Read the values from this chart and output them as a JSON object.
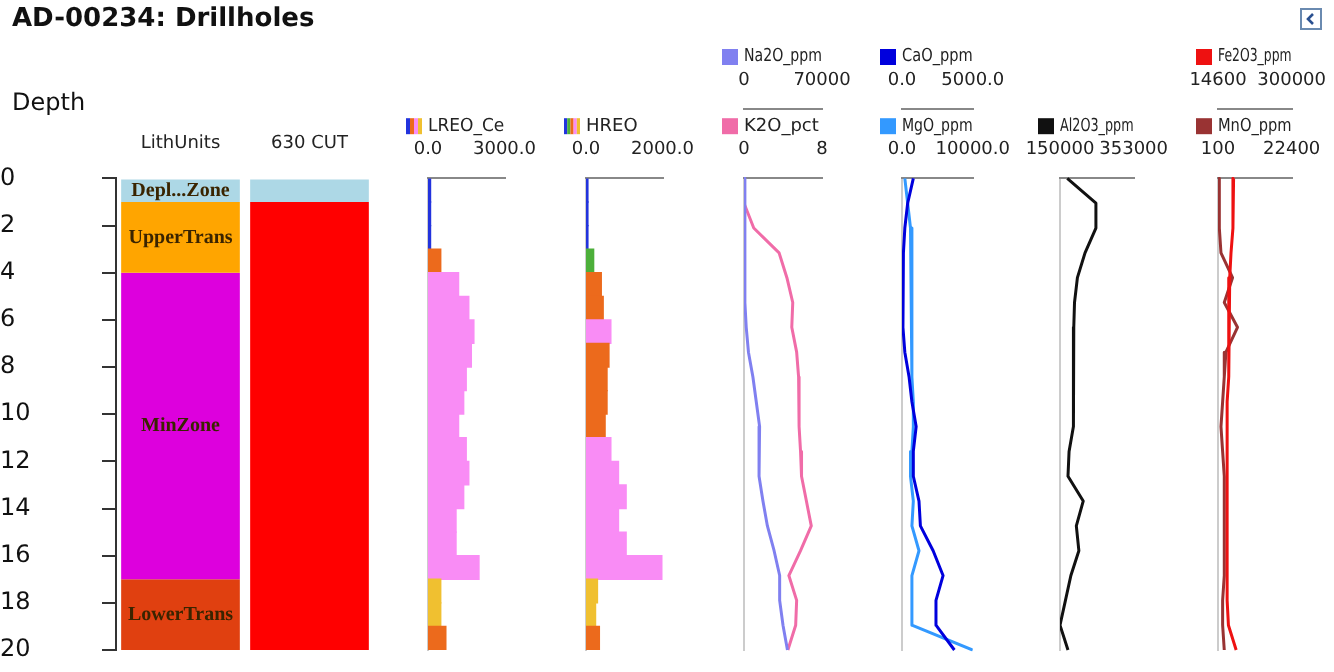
{
  "chart_data": [
    {
      "type": "bar",
      "stacked": true,
      "title": "AD-00234: Drillholes",
      "ylabel": "Depth",
      "categories": [
        "LithUnits",
        "630 CUT"
      ],
      "series": [
        {
          "name": "Depl...Zone",
          "color": "#add8e6",
          "values": [
            1,
            null
          ]
        },
        {
          "name": "UpperTrans",
          "color": "#ffa500",
          "values": [
            3,
            null
          ]
        },
        {
          "name": "MinZone",
          "color": "#dd00dd",
          "values": [
            13,
            null
          ]
        },
        {
          "name": "LowerTrans",
          "color": "#e04010",
          "values": [
            3,
            null
          ]
        },
        {
          "color": "#add8e6",
          "values": [
            null,
            1
          ]
        },
        {
          "color": "#ff0000",
          "values": [
            null,
            19
          ]
        }
      ],
      "ylim": [
        20,
        0
      ],
      "yticks": [
        0,
        2,
        4,
        6,
        8,
        10,
        12,
        14,
        16,
        18,
        20
      ]
    },
    {
      "type": "bar",
      "orientation": "horizontal",
      "categories": [
        null,
        null,
        null,
        null,
        null,
        null,
        null,
        null,
        null,
        null,
        null,
        null,
        null,
        null,
        null,
        null,
        null,
        null,
        null,
        null
      ],
      "series": [
        {
          "name": "LREO_Ce",
          "colors": [
            "#2233dd",
            "#2233dd",
            "#2233dd",
            "#ec6a1c",
            "#f98cf5",
            "#f98cf5",
            "#f98cf5",
            "#f98cf5",
            "#f98cf5",
            "#f98cf5",
            "#f98cf5",
            "#f98cf5",
            "#f98cf5",
            "#f98cf5",
            "#f98cf5",
            "#f98cf5",
            "#f98cf5",
            "#f0c030",
            "#f0c030",
            "#ec6a1c"
          ],
          "values": [
            100,
            100,
            100,
            500,
            1200,
            1600,
            1800,
            1700,
            1500,
            1400,
            1200,
            1500,
            1600,
            1400,
            1100,
            1100,
            2000,
            500,
            500,
            700
          ]
        }
      ],
      "xlim": [
        0,
        3000
      ],
      "xticks": [
        {
          "value": 0,
          "label": "0.0"
        },
        {
          "value": 3000,
          "label": "3000.0"
        }
      ],
      "tick_labels": "x",
      "legend": "top"
    },
    {
      "type": "bar",
      "orientation": "horizontal",
      "categories": [
        null,
        null,
        null,
        null,
        null,
        null,
        null,
        null,
        null,
        null,
        null,
        null,
        null,
        null,
        null,
        null,
        null,
        null,
        null,
        null
      ],
      "series": [
        {
          "name": "HREO",
          "colors": [
            "#2233dd",
            "#2233dd",
            "#2233dd",
            "#4caf3a",
            "#ec6a1c",
            "#ec6a1c",
            "#f98cf5",
            "#ec6a1c",
            "#ec6a1c",
            "#ec6a1c",
            "#ec6a1c",
            "#f98cf5",
            "#f98cf5",
            "#f98cf5",
            "#f98cf5",
            "#f98cf5",
            "#f98cf5",
            "#f0c030",
            "#f0c030",
            "#ec6a1c"
          ],
          "values": [
            50,
            50,
            50,
            200,
            400,
            450,
            650,
            600,
            550,
            550,
            500,
            650,
            850,
            1050,
            850,
            1050,
            2000,
            300,
            250,
            350
          ]
        }
      ],
      "xlim": [
        0,
        2000
      ],
      "xticks": [
        {
          "value": 0,
          "label": "0.0"
        },
        {
          "value": 2000,
          "label": "2000.0"
        }
      ],
      "tick_labels": "x",
      "legend": "top"
    },
    {
      "type": "line",
      "orientation": "horizontal",
      "categories": [
        null,
        null,
        null,
        null,
        null,
        null,
        null,
        null,
        null,
        null,
        null,
        null,
        null,
        null,
        null,
        null,
        null,
        null,
        null,
        null
      ],
      "series": [
        {
          "name": "Na2O_ppm",
          "color": "#8080f0",
          "axis": "x2",
          "values": [
            0,
            0,
            1000,
            1000,
            1000,
            1000,
            2000,
            4000,
            8000,
            11000,
            14000,
            14000,
            13000,
            17000,
            21000,
            27000,
            32000,
            32000,
            35000,
            39000
          ]
        },
        {
          "name": "K2O_pct",
          "color": "#f06ca8",
          "values": [
            0,
            0,
            1.0,
            3.6,
            4.4,
            5.0,
            4.9,
            5.4,
            5.6,
            5.6,
            5.7,
            5.8,
            5.9,
            6.4,
            6.9,
            5.8,
            4.6,
            5.4,
            5.3,
            4.5
          ]
        }
      ],
      "x2lim": [
        0,
        70000
      ],
      "x2ticks": [
        0,
        70000
      ],
      "xlim": [
        0,
        8
      ],
      "xticks": [
        0,
        8
      ],
      "tick_labels": "x",
      "legend": "top",
      "marker": "none",
      "line_style": "solid"
    },
    {
      "type": "line",
      "orientation": "horizontal",
      "categories": [
        null,
        null,
        null,
        null,
        null,
        null,
        null,
        null,
        null,
        null,
        null,
        null,
        null,
        null,
        null,
        null,
        null,
        null,
        null,
        null
      ],
      "series": [
        {
          "name": "CaO_ppm",
          "color": "#0000dd",
          "axis": "x2",
          "values": [
            800,
            400,
            200,
            100,
            0,
            100,
            100,
            200,
            500,
            700,
            1000,
            800,
            800,
            1200,
            1300,
            2200,
            2900,
            2400,
            2400,
            3700
          ]
        },
        {
          "name": "MgO_ppm",
          "color": "#3399ff",
          "values": [
            400,
            800,
            1200,
            1400,
            1400,
            1400,
            1400,
            1400,
            1400,
            1600,
            1600,
            1400,
            1200,
            1600,
            1400,
            2400,
            1400,
            1400,
            1400,
            10000
          ]
        }
      ],
      "x2lim": [
        0,
        5000
      ],
      "x2ticks": [
        {
          "value": 0,
          "label": "0.0"
        },
        {
          "value": 5000,
          "label": "5000.0"
        }
      ],
      "xlim": [
        0,
        10000
      ],
      "xticks": [
        {
          "value": 0,
          "label": "0.0"
        },
        {
          "value": 10000,
          "label": "10000.0"
        }
      ],
      "tick_labels": "x",
      "legend": "top",
      "marker": "none",
      "line_style": "solid"
    },
    {
      "type": "line",
      "orientation": "horizontal",
      "categories": [
        null,
        null,
        null,
        null,
        null,
        null,
        null,
        null,
        null,
        null,
        null,
        null,
        null,
        null,
        null,
        null,
        null,
        null,
        null,
        null
      ],
      "series": [
        {
          "name": "Al2O3_ppm",
          "color": "#111111",
          "values": [
            170000,
            249000,
            249000,
            219000,
            198000,
            190000,
            188000,
            188000,
            188000,
            187000,
            185000,
            175000,
            172000,
            214000,
            195000,
            202000,
            180000,
            165000,
            150000,
            172000
          ]
        }
      ],
      "xlim": [
        150000,
        353000
      ],
      "xticks": [
        150000,
        353000
      ],
      "tick_labels": "x",
      "legend": "top",
      "marker": "none",
      "line_style": "solid"
    },
    {
      "type": "line",
      "orientation": "horizontal",
      "categories": [
        null,
        null,
        null,
        null,
        null,
        null,
        null,
        null,
        null,
        null,
        null,
        null,
        null,
        null,
        null,
        null,
        null,
        null,
        null,
        null
      ],
      "series": [
        {
          "name": "Fe2O3_ppm",
          "color": "#ee1111",
          "axis": "x2",
          "values": [
            75000,
            75000,
            70000,
            65000,
            60000,
            60000,
            55000,
            55000,
            55000,
            50000,
            50000,
            50000,
            50000,
            50000,
            50000,
            50000,
            50000,
            50000,
            55000,
            85000
          ]
        },
        {
          "name": "MnO_ppm",
          "color": "#993333",
          "values": [
            500,
            500,
            500,
            1000,
            4500,
            2000,
            6000,
            2500,
            2000,
            1500,
            1000,
            1500,
            2000,
            2000,
            2000,
            2000,
            2000,
            1500,
            1500,
            2000
          ]
        }
      ],
      "x2lim": [
        14600,
        300000
      ],
      "x2ticks": [
        14600,
        300000
      ],
      "xlim": [
        100,
        22400
      ],
      "xticks": [
        100,
        22400
      ],
      "tick_labels": "x",
      "legend": "top",
      "marker": "none",
      "line_style": "solid"
    }
  ]
}
